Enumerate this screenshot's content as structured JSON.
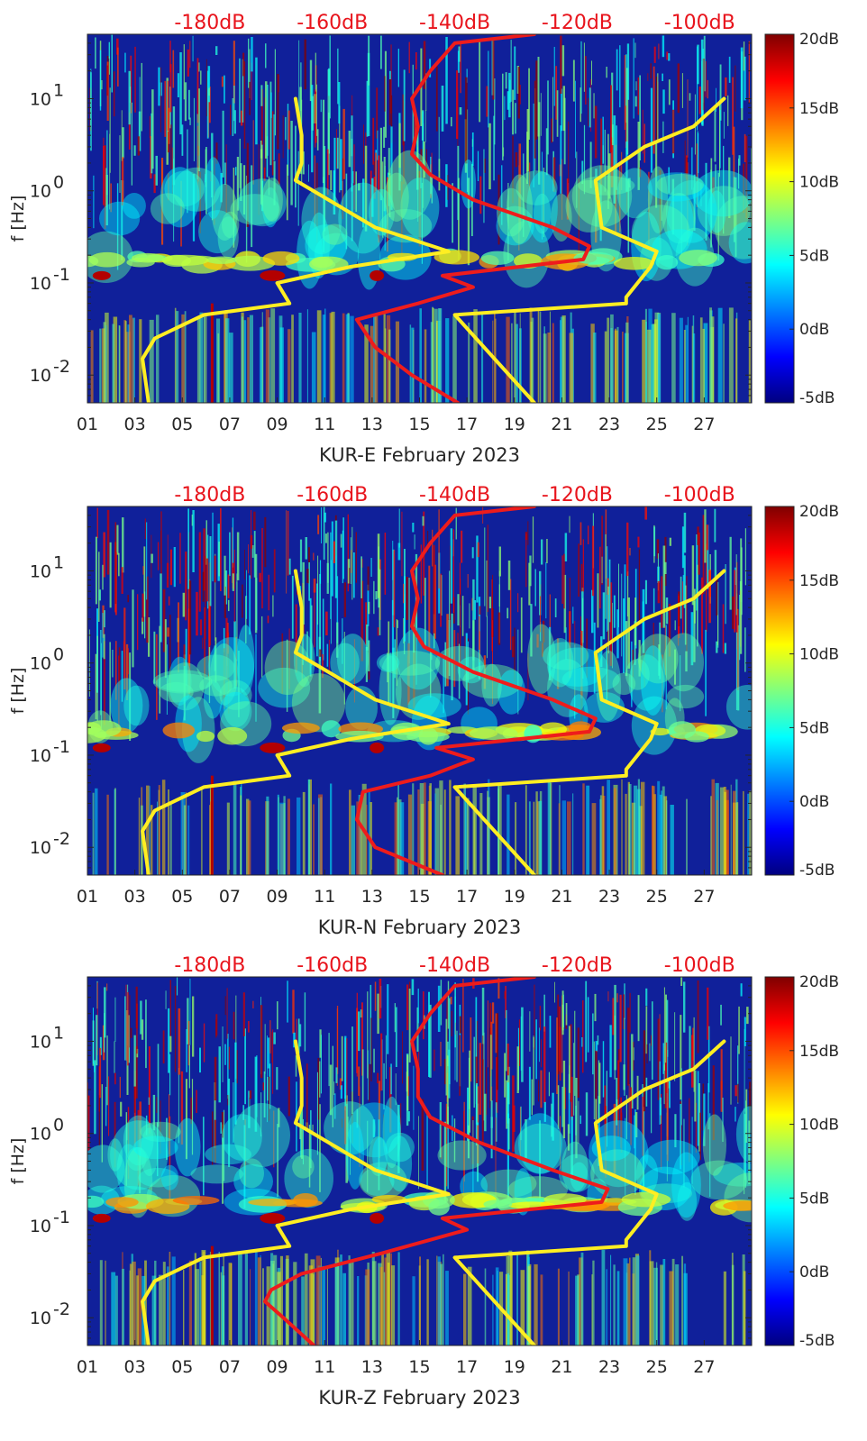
{
  "colors": {
    "jet": [
      "#00007f",
      "#0000ff",
      "#007fff",
      "#00ffff",
      "#7fff7f",
      "#ffff00",
      "#ff7f00",
      "#ff0000",
      "#7f0000"
    ],
    "background": "#10209a",
    "red_curve": "#ee1c1c",
    "yellow_curve": "#ffee22",
    "axis": "#262626",
    "top_label": "#e8141c"
  },
  "chart_data": [
    {
      "type": "heatmap",
      "title": "",
      "xlabel": "KUR-E February 2023",
      "ylabel": "f [Hz]",
      "yscale": "log",
      "ylim": [
        0.005,
        50
      ],
      "xlim": [
        1,
        29
      ],
      "x_ticks": [
        1,
        3,
        5,
        7,
        9,
        11,
        13,
        15,
        17,
        19,
        21,
        23,
        25,
        27
      ],
      "x_tick_labels": [
        "01",
        "03",
        "05",
        "07",
        "09",
        "11",
        "13",
        "15",
        "17",
        "19",
        "21",
        "23",
        "25",
        "27"
      ],
      "y_ticks": [
        0.01,
        0.1,
        1,
        10
      ],
      "y_tick_labels": [
        {
          "base": "10",
          "exp": "-2"
        },
        {
          "base": "10",
          "exp": "-1"
        },
        {
          "base": "10",
          "exp": "0"
        },
        {
          "base": "10",
          "exp": "1"
        }
      ],
      "top_axis_labels": [
        "-180dB",
        "-160dB",
        "-140dB",
        "-120dB",
        "-100dB"
      ],
      "top_axis_values": [
        -180,
        -160,
        -140,
        -120,
        -100
      ],
      "colorbar": {
        "min": -5,
        "max": 20,
        "ticks": [
          "20dB",
          "15dB",
          "10dB",
          "5dB",
          "0dB",
          "-5dB"
        ],
        "tick_values": [
          20,
          15,
          10,
          5,
          0,
          -5
        ]
      },
      "curves": [
        {
          "name": "median PSD (red)",
          "color": "red",
          "f": [
            0.005,
            0.01,
            0.02,
            0.04,
            0.06,
            0.09,
            0.12,
            0.18,
            0.25,
            0.4,
            0.8,
            1.5,
            2.5,
            5,
            10,
            20,
            40,
            50
          ],
          "db": [
            -139.5,
            -147,
            -153,
            -156,
            -146,
            -137,
            -142,
            -119,
            -118,
            -124,
            -137,
            -144,
            -147,
            -146,
            -147,
            -144,
            -140,
            -127
          ]
        },
        {
          "name": "reference lower (yellow)",
          "color": "yellow",
          "f": [
            0.005,
            0.015,
            0.025,
            0.045,
            0.06,
            0.1,
            0.15,
            0.22,
            0.4,
            1.3,
            2,
            4,
            10
          ],
          "db": [
            -190,
            -191,
            -189,
            -181,
            -167,
            -169,
            -157,
            -141,
            -153,
            -166,
            -165,
            -165,
            -166
          ]
        },
        {
          "name": "reference upper (yellow)",
          "color": "yellow",
          "f": [
            0.005,
            0.045,
            0.06,
            0.07,
            0.15,
            0.22,
            0.4,
            1.3,
            3,
            5,
            10
          ],
          "db": [
            -127,
            -140,
            -112,
            -112,
            -108,
            -107,
            -116,
            -117,
            -109,
            -101,
            -96
          ]
        }
      ]
    },
    {
      "type": "heatmap",
      "title": "",
      "xlabel": "KUR-N February 2023",
      "ylabel": "f [Hz]",
      "yscale": "log",
      "ylim": [
        0.005,
        50
      ],
      "xlim": [
        1,
        29
      ],
      "x_ticks": [
        1,
        3,
        5,
        7,
        9,
        11,
        13,
        15,
        17,
        19,
        21,
        23,
        25,
        27
      ],
      "x_tick_labels": [
        "01",
        "03",
        "05",
        "07",
        "09",
        "11",
        "13",
        "15",
        "17",
        "19",
        "21",
        "23",
        "25",
        "27"
      ],
      "y_ticks": [
        0.01,
        0.1,
        1,
        10
      ],
      "y_tick_labels": [
        {
          "base": "10",
          "exp": "-2"
        },
        {
          "base": "10",
          "exp": "-1"
        },
        {
          "base": "10",
          "exp": "0"
        },
        {
          "base": "10",
          "exp": "1"
        }
      ],
      "top_axis_labels": [
        "-180dB",
        "-160dB",
        "-140dB",
        "-120dB",
        "-100dB"
      ],
      "top_axis_values": [
        -180,
        -160,
        -140,
        -120,
        -100
      ],
      "colorbar": {
        "min": -5,
        "max": 20,
        "ticks": [
          "20dB",
          "15dB",
          "10dB",
          "5dB",
          "0dB",
          "-5dB"
        ],
        "tick_values": [
          20,
          15,
          10,
          5,
          0,
          -5
        ]
      },
      "curves": [
        {
          "name": "median PSD (red)",
          "color": "red",
          "f": [
            0.005,
            0.01,
            0.02,
            0.04,
            0.06,
            0.09,
            0.12,
            0.18,
            0.25,
            0.4,
            0.8,
            1.5,
            2.5,
            5,
            10,
            20,
            40,
            50
          ],
          "db": [
            -142,
            -153,
            -156,
            -155,
            -144,
            -137,
            -143,
            -118,
            -117,
            -124,
            -137,
            -145,
            -147,
            -146,
            -147,
            -144,
            -140,
            -127
          ]
        },
        {
          "name": "reference lower (yellow)",
          "color": "yellow",
          "f": [
            0.005,
            0.015,
            0.025,
            0.045,
            0.06,
            0.1,
            0.15,
            0.22,
            0.4,
            1.3,
            2,
            4,
            10
          ],
          "db": [
            -190,
            -191,
            -189,
            -181,
            -167,
            -169,
            -157,
            -141,
            -153,
            -166,
            -165,
            -165,
            -166
          ]
        },
        {
          "name": "reference upper (yellow)",
          "color": "yellow",
          "f": [
            0.005,
            0.045,
            0.06,
            0.07,
            0.15,
            0.22,
            0.4,
            1.3,
            3,
            5,
            10
          ],
          "db": [
            -127,
            -140,
            -112,
            -112,
            -108,
            -107,
            -116,
            -117,
            -109,
            -101,
            -96
          ]
        }
      ]
    },
    {
      "type": "heatmap",
      "title": "",
      "xlabel": "KUR-Z February 2023",
      "ylabel": "f [Hz]",
      "yscale": "log",
      "ylim": [
        0.005,
        50
      ],
      "xlim": [
        1,
        29
      ],
      "x_ticks": [
        1,
        3,
        5,
        7,
        9,
        11,
        13,
        15,
        17,
        19,
        21,
        23,
        25,
        27
      ],
      "x_tick_labels": [
        "01",
        "03",
        "05",
        "07",
        "09",
        "11",
        "13",
        "15",
        "17",
        "19",
        "21",
        "23",
        "25",
        "27"
      ],
      "y_ticks": [
        0.01,
        0.1,
        1,
        10
      ],
      "y_tick_labels": [
        {
          "base": "10",
          "exp": "-2"
        },
        {
          "base": "10",
          "exp": "-1"
        },
        {
          "base": "10",
          "exp": "0"
        },
        {
          "base": "10",
          "exp": "1"
        }
      ],
      "top_axis_labels": [
        "-180dB",
        "-160dB",
        "-140dB",
        "-120dB",
        "-100dB"
      ],
      "top_axis_values": [
        -180,
        -160,
        -140,
        -120,
        -100
      ],
      "colorbar": {
        "min": -5,
        "max": 20,
        "ticks": [
          "20dB",
          "15dB",
          "10dB",
          "5dB",
          "0dB",
          "-5dB"
        ],
        "tick_values": [
          20,
          15,
          10,
          5,
          0,
          -5
        ]
      },
      "curves": [
        {
          "name": "median PSD (red)",
          "color": "red",
          "f": [
            0.005,
            0.01,
            0.015,
            0.02,
            0.03,
            0.05,
            0.09,
            0.12,
            0.18,
            0.25,
            0.4,
            0.8,
            1.5,
            2.5,
            5,
            10,
            20,
            40,
            50
          ],
          "db": [
            -163,
            -168,
            -171,
            -170,
            -165,
            -152,
            -138,
            -142,
            -116,
            -115,
            -124,
            -136,
            -144,
            -146,
            -146,
            -147,
            -144,
            -140,
            -127
          ]
        },
        {
          "name": "reference lower (yellow)",
          "color": "yellow",
          "f": [
            0.005,
            0.015,
            0.025,
            0.045,
            0.06,
            0.1,
            0.15,
            0.22,
            0.4,
            1.3,
            2,
            4,
            10
          ],
          "db": [
            -190,
            -191,
            -189,
            -181,
            -167,
            -169,
            -157,
            -141,
            -153,
            -166,
            -165,
            -165,
            -166
          ]
        },
        {
          "name": "reference upper (yellow)",
          "color": "yellow",
          "f": [
            0.005,
            0.045,
            0.06,
            0.07,
            0.15,
            0.22,
            0.4,
            1.3,
            3,
            5,
            10
          ],
          "db": [
            -127,
            -140,
            -112,
            -112,
            -108,
            -107,
            -116,
            -117,
            -109,
            -101,
            -96
          ]
        }
      ]
    }
  ]
}
